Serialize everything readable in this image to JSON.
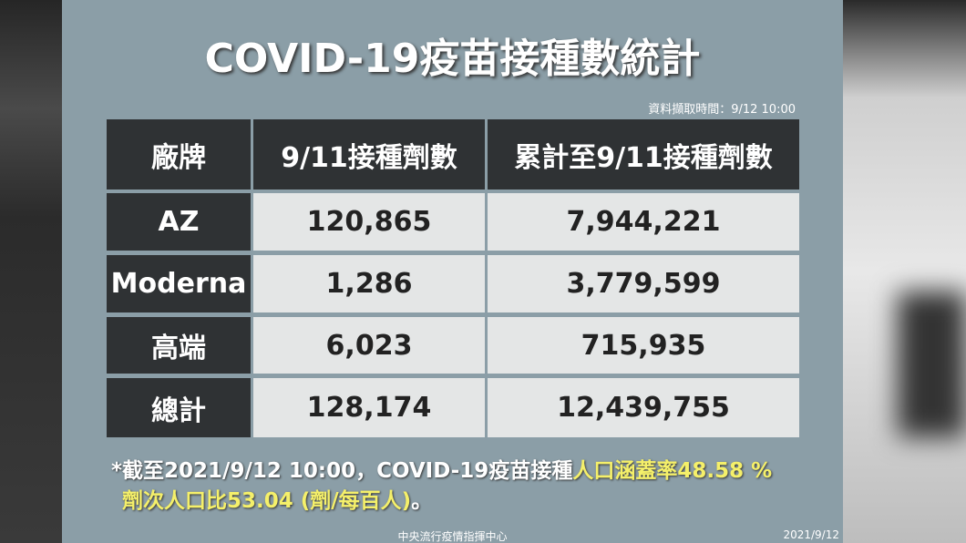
{
  "header": {
    "title": "COVID-19疫苗接種數統計",
    "timestamp": "資料擷取時間：9/12 10:00"
  },
  "table": {
    "columns": [
      "廠牌",
      "9/11接種劑數",
      "累計至9/11接種劑數"
    ],
    "rows": [
      [
        "AZ",
        "120,865",
        "7,944,221"
      ],
      [
        "Moderna",
        "1,286",
        "3,779,599"
      ],
      [
        "高端",
        "6,023",
        "715,935"
      ],
      [
        "總計",
        "128,174",
        "12,439,755"
      ]
    ]
  },
  "footnote": {
    "line1_text": "*截至2021/9/12 10:00，COVID-19疫苗接種",
    "line1_highlight": "人口涵蓋率48.58 %",
    "line2_highlight": "劑次人口比53.04 (劑/每百人)",
    "line2_text": "。"
  },
  "footer": {
    "source": "中央流行疫情指揮中心",
    "date": "2021/9/12"
  }
}
